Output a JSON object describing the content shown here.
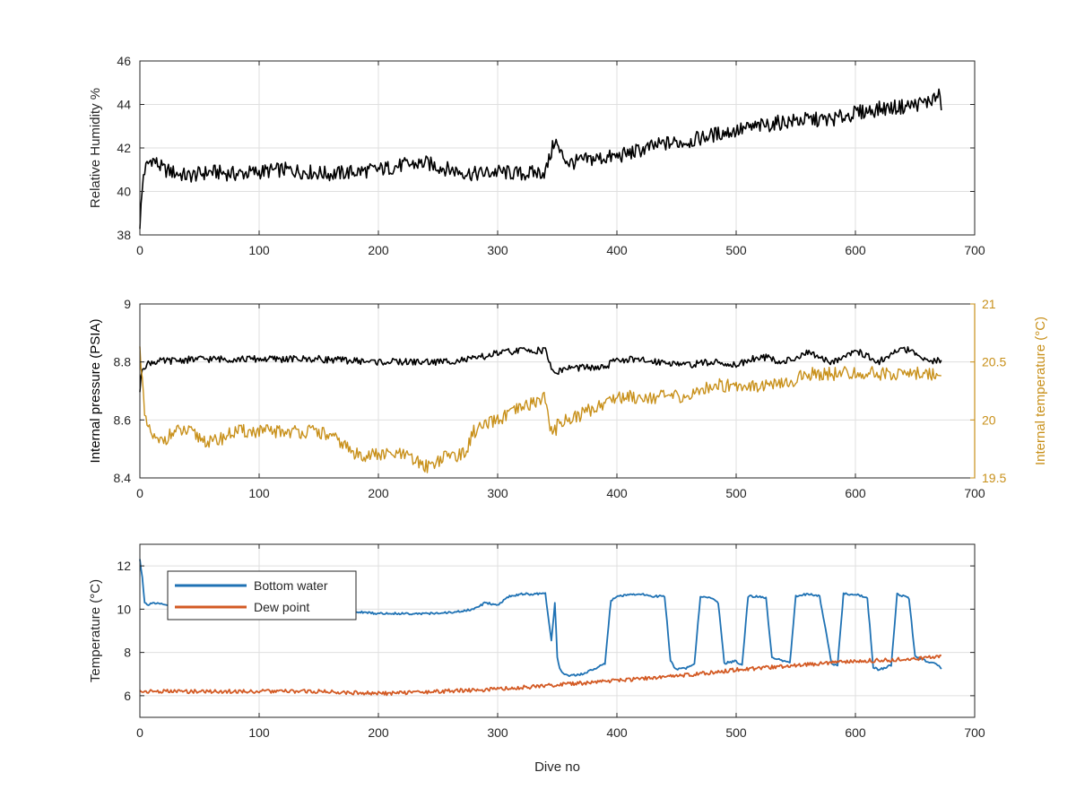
{
  "colors": {
    "black": "#000000",
    "orange": "#C8901A",
    "blue": "#1F72B4",
    "red": "#D35A24",
    "axis": "#262626",
    "grid": "#dfdfdf"
  },
  "chart_data": [
    {
      "type": "line",
      "title": "",
      "xlabel": "",
      "ylabel": "Relative Humidity %",
      "xlim": [
        0,
        700
      ],
      "ylim": [
        38,
        46
      ],
      "xticks": [
        "0",
        "100",
        "200",
        "300",
        "400",
        "500",
        "600",
        "700"
      ],
      "yticks": [
        "38",
        "40",
        "42",
        "44",
        "46"
      ],
      "grid": true,
      "series": [
        {
          "color": "black",
          "x": [
            0,
            3,
            6,
            10,
            20,
            40,
            60,
            80,
            100,
            120,
            140,
            160,
            180,
            200,
            220,
            240,
            260,
            280,
            300,
            320,
            340,
            344,
            348,
            352,
            360,
            380,
            400,
            420,
            440,
            460,
            480,
            500,
            520,
            540,
            560,
            580,
            600,
            620,
            640,
            660,
            670,
            672
          ],
          "values": [
            38.5,
            40.8,
            41.2,
            41.5,
            41.0,
            40.7,
            40.9,
            40.8,
            40.9,
            41.0,
            40.9,
            40.8,
            40.9,
            41.0,
            41.2,
            41.3,
            41.0,
            40.8,
            40.9,
            40.8,
            40.9,
            41.6,
            42.4,
            41.8,
            41.3,
            41.5,
            41.6,
            41.9,
            42.2,
            42.3,
            42.6,
            42.8,
            43.0,
            43.2,
            43.3,
            43.3,
            43.6,
            43.8,
            43.9,
            44.1,
            44.4,
            44.0
          ]
        }
      ]
    },
    {
      "type": "line",
      "title": "",
      "xlabel": "",
      "ylabel": "Internal pressure (PSIA)",
      "y2label": "Internal temperature (°C)",
      "xlim": [
        0,
        700
      ],
      "ylim": [
        8.4,
        9
      ],
      "y2lim": [
        19.5,
        21
      ],
      "xticks": [
        "0",
        "100",
        "200",
        "300",
        "400",
        "500",
        "600",
        "700"
      ],
      "yticks": [
        "8.4",
        "8.6",
        "8.8",
        "9"
      ],
      "y2ticks": [
        "19.5",
        "20",
        "20.5",
        "21"
      ],
      "grid": true,
      "series": [
        {
          "axis": "left",
          "color": "black",
          "x": [
            0,
            2,
            5,
            10,
            50,
            100,
            150,
            200,
            250,
            280,
            300,
            320,
            340,
            344,
            348,
            352,
            360,
            380,
            390,
            400,
            440,
            460,
            480,
            500,
            520,
            540,
            560,
            580,
            600,
            620,
            640,
            660,
            672
          ],
          "values": [
            8.7,
            8.78,
            8.79,
            8.8,
            8.81,
            8.81,
            8.81,
            8.8,
            8.8,
            8.81,
            8.83,
            8.84,
            8.84,
            8.79,
            8.76,
            8.77,
            8.78,
            8.78,
            8.78,
            8.81,
            8.8,
            8.79,
            8.8,
            8.79,
            8.82,
            8.8,
            8.83,
            8.8,
            8.84,
            8.8,
            8.85,
            8.8,
            8.81
          ]
        },
        {
          "axis": "right",
          "color": "orange",
          "x": [
            0,
            2,
            4,
            8,
            15,
            30,
            40,
            60,
            80,
            100,
            130,
            150,
            170,
            180,
            200,
            220,
            240,
            260,
            272,
            280,
            300,
            320,
            340,
            344,
            348,
            352,
            360,
            380,
            400,
            420,
            440,
            460,
            480,
            500,
            520,
            540,
            560,
            580,
            600,
            620,
            640,
            660,
            672
          ],
          "values": [
            20.6,
            20.4,
            20.0,
            19.9,
            19.8,
            19.9,
            19.9,
            19.8,
            19.9,
            19.9,
            19.9,
            19.9,
            19.8,
            19.7,
            19.7,
            19.7,
            19.6,
            19.7,
            19.7,
            19.9,
            20.0,
            20.1,
            20.2,
            19.9,
            19.9,
            20.0,
            20.0,
            20.1,
            20.2,
            20.2,
            20.2,
            20.2,
            20.3,
            20.3,
            20.3,
            20.3,
            20.4,
            20.4,
            20.4,
            20.4,
            20.4,
            20.4,
            20.4
          ]
        }
      ]
    },
    {
      "type": "line",
      "title": "",
      "xlabel": "Dive no",
      "ylabel": "Temperature (°C)",
      "xlim": [
        0,
        700
      ],
      "ylim": [
        5,
        13
      ],
      "xticks": [
        "0",
        "100",
        "200",
        "300",
        "400",
        "500",
        "600",
        "700"
      ],
      "yticks": [
        "6",
        "8",
        "10",
        "12"
      ],
      "grid": true,
      "legend": "top-left",
      "series": [
        {
          "name": "Bottom water",
          "color": "blue",
          "x": [
            0,
            2,
            4,
            6,
            10,
            20,
            50,
            100,
            150,
            200,
            250,
            270,
            280,
            290,
            300,
            310,
            320,
            340,
            345,
            348,
            350,
            352,
            355,
            360,
            370,
            380,
            390,
            395,
            400,
            420,
            430,
            440,
            445,
            450,
            460,
            465,
            470,
            480,
            485,
            490,
            500,
            505,
            510,
            520,
            525,
            530,
            540,
            545,
            550,
            560,
            570,
            580,
            585,
            590,
            600,
            610,
            615,
            620,
            630,
            635,
            640,
            645,
            650,
            660,
            670,
            672
          ],
          "values": [
            12.3,
            11.5,
            10.3,
            10.2,
            10.3,
            10.2,
            10.1,
            10.1,
            10.0,
            9.8,
            9.8,
            9.9,
            10.0,
            10.3,
            10.2,
            10.6,
            10.7,
            10.7,
            8.5,
            10.3,
            7.8,
            7.3,
            7.0,
            6.9,
            7.0,
            7.2,
            7.5,
            10.4,
            10.6,
            10.7,
            10.6,
            10.6,
            7.6,
            7.2,
            7.3,
            7.5,
            10.6,
            10.5,
            10.3,
            7.5,
            7.6,
            7.4,
            10.6,
            10.6,
            10.5,
            7.8,
            7.6,
            7.5,
            10.6,
            10.7,
            10.6,
            7.5,
            7.4,
            10.7,
            10.7,
            10.5,
            7.3,
            7.2,
            7.4,
            10.7,
            10.6,
            10.5,
            7.8,
            7.6,
            7.4,
            7.2
          ]
        },
        {
          "name": "Dew point",
          "color": "red",
          "x": [
            0,
            50,
            100,
            150,
            200,
            250,
            300,
            350,
            400,
            450,
            500,
            550,
            600,
            650,
            672
          ],
          "values": [
            6.2,
            6.2,
            6.2,
            6.2,
            6.1,
            6.2,
            6.3,
            6.5,
            6.7,
            6.9,
            7.2,
            7.4,
            7.6,
            7.7,
            7.8
          ]
        }
      ]
    }
  ]
}
